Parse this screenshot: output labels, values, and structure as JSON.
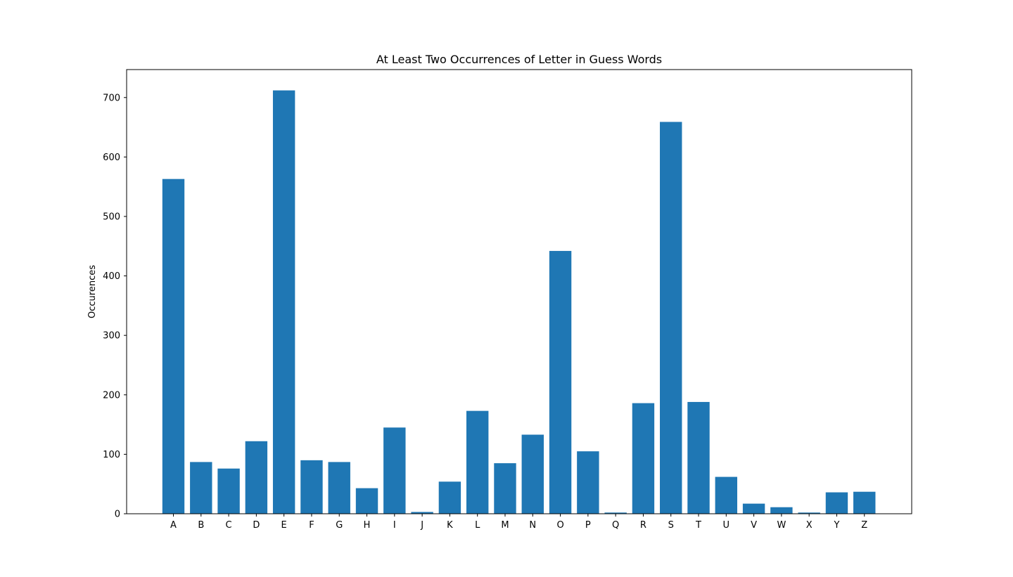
{
  "chart_data": {
    "type": "bar",
    "title": "At Least Two Occurrences of Letter in Guess Words",
    "xlabel": "",
    "ylabel": "Occurences",
    "categories": [
      "A",
      "B",
      "C",
      "D",
      "E",
      "F",
      "G",
      "H",
      "I",
      "J",
      "K",
      "L",
      "M",
      "N",
      "O",
      "P",
      "Q",
      "R",
      "S",
      "T",
      "U",
      "V",
      "W",
      "X",
      "Y",
      "Z"
    ],
    "values": [
      563,
      87,
      76,
      122,
      712,
      90,
      87,
      43,
      145,
      3,
      54,
      173,
      85,
      133,
      442,
      105,
      2,
      186,
      659,
      188,
      62,
      17,
      11,
      2,
      36,
      37
    ],
    "ylim": [
      0,
      747
    ],
    "yticks": [
      0,
      100,
      200,
      300,
      400,
      500,
      600,
      700
    ],
    "bar_color": "#1f77b4",
    "grid": false,
    "legend": "none"
  }
}
